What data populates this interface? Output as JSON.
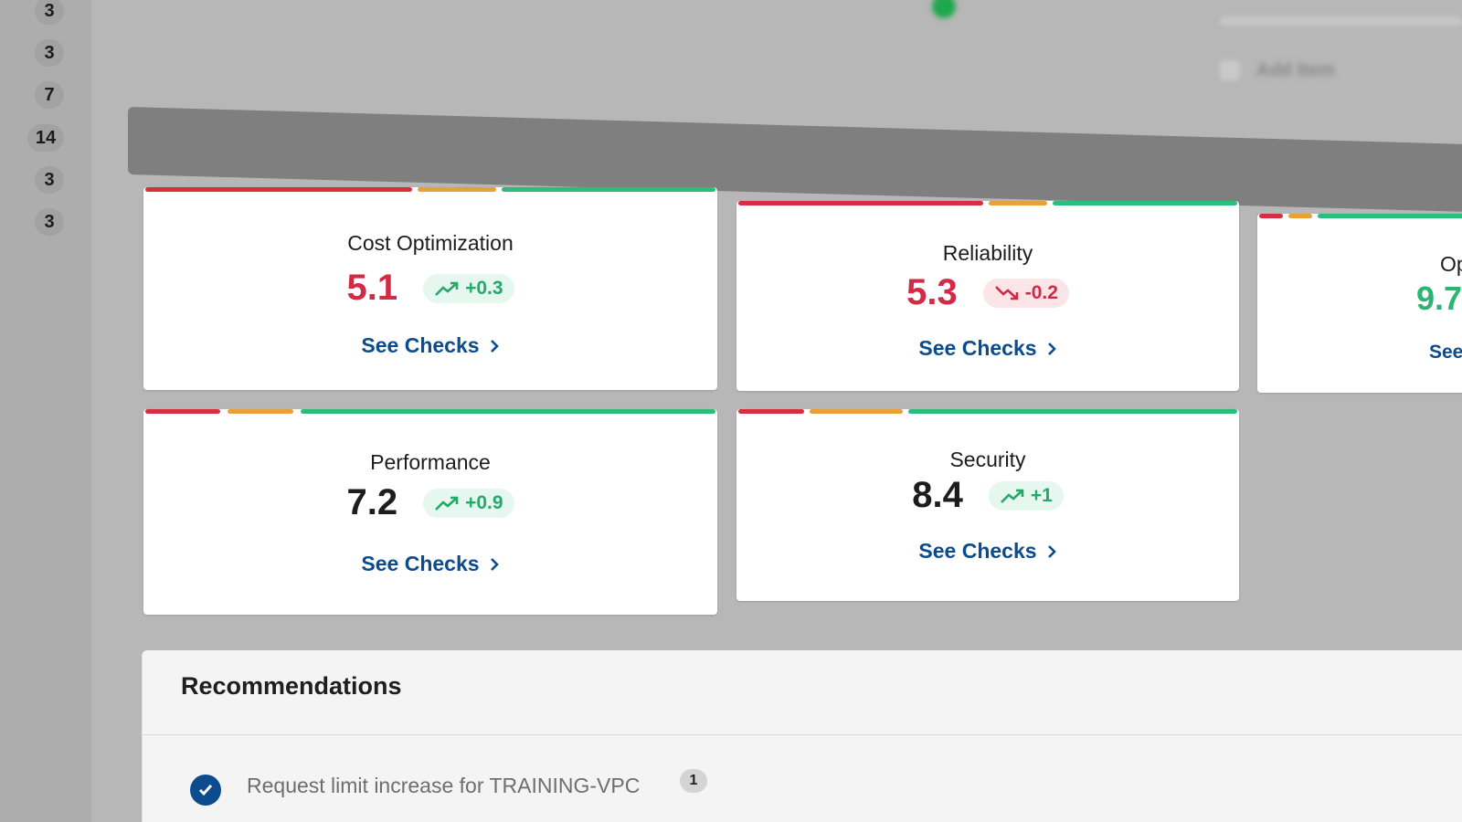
{
  "sidebar_counts": [
    "3",
    "3",
    "7",
    "14",
    "3",
    "3"
  ],
  "header_blur": {
    "button_label": "Add Item"
  },
  "colors": {
    "red": "#d53042",
    "orange": "#e8a038",
    "green": "#2dbd7a",
    "link": "#0b4c8f"
  },
  "cards": [
    {
      "title": "Cost Optimization",
      "score": "5.1",
      "score_tone": "red",
      "delta": "+0.3",
      "trend": "up",
      "link": "See Checks"
    },
    {
      "title": "Reliability",
      "score": "5.3",
      "score_tone": "red",
      "delta": "-0.2",
      "trend": "down",
      "link": "See Checks"
    },
    {
      "title": "Op",
      "score": "9.7",
      "score_tone": "green",
      "delta": "",
      "trend": "",
      "link": "See"
    },
    {
      "title": "Performance",
      "score": "7.2",
      "score_tone": "dark",
      "delta": "+0.9",
      "trend": "up",
      "link": "See Checks"
    },
    {
      "title": "Security",
      "score": "8.4",
      "score_tone": "dark",
      "delta": "+1",
      "trend": "up",
      "link": "See Checks"
    }
  ],
  "recommendations": {
    "title": "Recommendations",
    "items": [
      {
        "text": "Request limit increase for TRAINING-VPC",
        "count": "1",
        "checked": true
      }
    ]
  }
}
